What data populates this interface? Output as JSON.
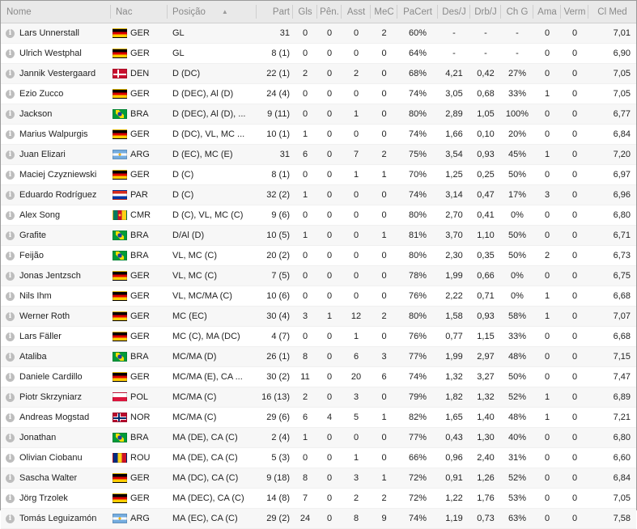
{
  "headers": {
    "name": "Nome",
    "nat": "Nac",
    "pos": "Posição",
    "apps": "Part",
    "gls": "Gls",
    "pens": "Pên.",
    "ast": "Asst",
    "mec": "MeC",
    "pacert": "PaCert",
    "desj": "Des/J",
    "drbj": "Drb/J",
    "chg": "Ch G",
    "ama": "Ama",
    "verm": "Verm",
    "clmed": "Cl Med"
  },
  "sort": {
    "column": "pos",
    "direction": "ascending",
    "icon": "sort-ascending-icon"
  },
  "info_icon": "i",
  "players": [
    {
      "name": "Lars Unnerstall",
      "nat": "GER",
      "pos": "GL",
      "apps": "31",
      "gls": "0",
      "pens": "0",
      "ast": "0",
      "mec": "2",
      "pacert": "60%",
      "desj": "-",
      "drbj": "-",
      "chg": "-",
      "ama": "0",
      "verm": "0",
      "clmed": "7,01"
    },
    {
      "name": "Ulrich Westphal",
      "nat": "GER",
      "pos": "GL",
      "apps": "8 (1)",
      "gls": "0",
      "pens": "0",
      "ast": "0",
      "mec": "0",
      "pacert": "64%",
      "desj": "-",
      "drbj": "-",
      "chg": "-",
      "ama": "0",
      "verm": "0",
      "clmed": "6,90"
    },
    {
      "name": "Jannik Vestergaard",
      "nat": "DEN",
      "pos": "D (DC)",
      "apps": "22 (1)",
      "gls": "2",
      "pens": "0",
      "ast": "2",
      "mec": "0",
      "pacert": "68%",
      "desj": "4,21",
      "drbj": "0,42",
      "chg": "27%",
      "ama": "0",
      "verm": "0",
      "clmed": "7,05"
    },
    {
      "name": "Ezio Zucco",
      "nat": "GER",
      "pos": "D (DEC), Al (D)",
      "apps": "24 (4)",
      "gls": "0",
      "pens": "0",
      "ast": "0",
      "mec": "0",
      "pacert": "74%",
      "desj": "3,05",
      "drbj": "0,68",
      "chg": "33%",
      "ama": "1",
      "verm": "0",
      "clmed": "7,05"
    },
    {
      "name": "Jackson",
      "nat": "BRA",
      "pos": "D (DEC), Al (D), ...",
      "apps": "9 (11)",
      "gls": "0",
      "pens": "0",
      "ast": "1",
      "mec": "0",
      "pacert": "80%",
      "desj": "2,89",
      "drbj": "1,05",
      "chg": "100%",
      "ama": "0",
      "verm": "0",
      "clmed": "6,77"
    },
    {
      "name": "Marius Walpurgis",
      "nat": "GER",
      "pos": "D (DC), VL, MC ...",
      "apps": "10 (1)",
      "gls": "1",
      "pens": "0",
      "ast": "0",
      "mec": "0",
      "pacert": "74%",
      "desj": "1,66",
      "drbj": "0,10",
      "chg": "20%",
      "ama": "0",
      "verm": "0",
      "clmed": "6,84"
    },
    {
      "name": "Juan Elizari",
      "nat": "ARG",
      "pos": "D (EC), MC (E)",
      "apps": "31",
      "gls": "6",
      "pens": "0",
      "ast": "7",
      "mec": "2",
      "pacert": "75%",
      "desj": "3,54",
      "drbj": "0,93",
      "chg": "45%",
      "ama": "1",
      "verm": "0",
      "clmed": "7,20"
    },
    {
      "name": "Maciej Czyzniewski",
      "nat": "GER",
      "pos": "D (C)",
      "apps": "8 (1)",
      "gls": "0",
      "pens": "0",
      "ast": "1",
      "mec": "1",
      "pacert": "70%",
      "desj": "1,25",
      "drbj": "0,25",
      "chg": "50%",
      "ama": "0",
      "verm": "0",
      "clmed": "6,97"
    },
    {
      "name": "Eduardo Rodríguez",
      "nat": "PAR",
      "pos": "D (C)",
      "apps": "32 (2)",
      "gls": "1",
      "pens": "0",
      "ast": "0",
      "mec": "0",
      "pacert": "74%",
      "desj": "3,14",
      "drbj": "0,47",
      "chg": "17%",
      "ama": "3",
      "verm": "0",
      "clmed": "6,96"
    },
    {
      "name": "Alex Song",
      "nat": "CMR",
      "pos": "D (C), VL, MC (C)",
      "apps": "9 (6)",
      "gls": "0",
      "pens": "0",
      "ast": "0",
      "mec": "0",
      "pacert": "80%",
      "desj": "2,70",
      "drbj": "0,41",
      "chg": "0%",
      "ama": "0",
      "verm": "0",
      "clmed": "6,80"
    },
    {
      "name": "Grafite",
      "nat": "BRA",
      "pos": "D/Al (D)",
      "apps": "10 (5)",
      "gls": "1",
      "pens": "0",
      "ast": "0",
      "mec": "1",
      "pacert": "81%",
      "desj": "3,70",
      "drbj": "1,10",
      "chg": "50%",
      "ama": "0",
      "verm": "0",
      "clmed": "6,71"
    },
    {
      "name": "Feijão",
      "nat": "BRA",
      "pos": "VL, MC (C)",
      "apps": "20 (2)",
      "gls": "0",
      "pens": "0",
      "ast": "0",
      "mec": "0",
      "pacert": "80%",
      "desj": "2,30",
      "drbj": "0,35",
      "chg": "50%",
      "ama": "2",
      "verm": "0",
      "clmed": "6,73"
    },
    {
      "name": "Jonas Jentzsch",
      "nat": "GER",
      "pos": "VL, MC (C)",
      "apps": "7 (5)",
      "gls": "0",
      "pens": "0",
      "ast": "0",
      "mec": "0",
      "pacert": "78%",
      "desj": "1,99",
      "drbj": "0,66",
      "chg": "0%",
      "ama": "0",
      "verm": "0",
      "clmed": "6,75"
    },
    {
      "name": "Nils Ihm",
      "nat": "GER",
      "pos": "VL, MC/MA (C)",
      "apps": "10 (6)",
      "gls": "0",
      "pens": "0",
      "ast": "0",
      "mec": "0",
      "pacert": "76%",
      "desj": "2,22",
      "drbj": "0,71",
      "chg": "0%",
      "ama": "1",
      "verm": "0",
      "clmed": "6,68"
    },
    {
      "name": "Werner Roth",
      "nat": "GER",
      "pos": "MC (EC)",
      "apps": "30 (4)",
      "gls": "3",
      "pens": "1",
      "ast": "12",
      "mec": "2",
      "pacert": "80%",
      "desj": "1,58",
      "drbj": "0,93",
      "chg": "58%",
      "ama": "1",
      "verm": "0",
      "clmed": "7,07"
    },
    {
      "name": "Lars Fäller",
      "nat": "GER",
      "pos": "MC (C), MA (DC)",
      "apps": "4 (7)",
      "gls": "0",
      "pens": "0",
      "ast": "1",
      "mec": "0",
      "pacert": "76%",
      "desj": "0,77",
      "drbj": "1,15",
      "chg": "33%",
      "ama": "0",
      "verm": "0",
      "clmed": "6,68"
    },
    {
      "name": "Ataliba",
      "nat": "BRA",
      "pos": "MC/MA (D)",
      "apps": "26 (1)",
      "gls": "8",
      "pens": "0",
      "ast": "6",
      "mec": "3",
      "pacert": "77%",
      "desj": "1,99",
      "drbj": "2,97",
      "chg": "48%",
      "ama": "0",
      "verm": "0",
      "clmed": "7,15"
    },
    {
      "name": "Daniele Cardillo",
      "nat": "GER",
      "pos": "MC/MA (E), CA ...",
      "apps": "30 (2)",
      "gls": "11",
      "pens": "0",
      "ast": "20",
      "mec": "6",
      "pacert": "74%",
      "desj": "1,32",
      "drbj": "3,27",
      "chg": "50%",
      "ama": "0",
      "verm": "0",
      "clmed": "7,47"
    },
    {
      "name": "Piotr Skrzyniarz",
      "nat": "POL",
      "pos": "MC/MA (C)",
      "apps": "16 (13)",
      "gls": "2",
      "pens": "0",
      "ast": "3",
      "mec": "0",
      "pacert": "79%",
      "desj": "1,82",
      "drbj": "1,32",
      "chg": "52%",
      "ama": "1",
      "verm": "0",
      "clmed": "6,89"
    },
    {
      "name": "Andreas Mogstad",
      "nat": "NOR",
      "pos": "MC/MA (C)",
      "apps": "29 (6)",
      "gls": "6",
      "pens": "4",
      "ast": "5",
      "mec": "1",
      "pacert": "82%",
      "desj": "1,65",
      "drbj": "1,40",
      "chg": "48%",
      "ama": "1",
      "verm": "0",
      "clmed": "7,21"
    },
    {
      "name": "Jonathan",
      "nat": "BRA",
      "pos": "MA (DE), CA (C)",
      "apps": "2 (4)",
      "gls": "1",
      "pens": "0",
      "ast": "0",
      "mec": "0",
      "pacert": "77%",
      "desj": "0,43",
      "drbj": "1,30",
      "chg": "40%",
      "ama": "0",
      "verm": "0",
      "clmed": "6,80"
    },
    {
      "name": "Olivian Ciobanu",
      "nat": "ROU",
      "pos": "MA (DE), CA (C)",
      "apps": "5 (3)",
      "gls": "0",
      "pens": "0",
      "ast": "1",
      "mec": "0",
      "pacert": "66%",
      "desj": "0,96",
      "drbj": "2,40",
      "chg": "31%",
      "ama": "0",
      "verm": "0",
      "clmed": "6,60"
    },
    {
      "name": "Sascha Walter",
      "nat": "GER",
      "pos": "MA (DC), CA (C)",
      "apps": "9 (18)",
      "gls": "8",
      "pens": "0",
      "ast": "3",
      "mec": "1",
      "pacert": "72%",
      "desj": "0,91",
      "drbj": "1,26",
      "chg": "52%",
      "ama": "0",
      "verm": "0",
      "clmed": "6,84"
    },
    {
      "name": "Jörg Trzolek",
      "nat": "GER",
      "pos": "MA (DEC), CA (C)",
      "apps": "14 (8)",
      "gls": "7",
      "pens": "0",
      "ast": "2",
      "mec": "2",
      "pacert": "72%",
      "desj": "1,22",
      "drbj": "1,76",
      "chg": "53%",
      "ama": "0",
      "verm": "0",
      "clmed": "7,05"
    },
    {
      "name": "Tomás Leguizamón",
      "nat": "ARG",
      "pos": "MA (EC), CA (C)",
      "apps": "29 (2)",
      "gls": "24",
      "pens": "0",
      "ast": "8",
      "mec": "9",
      "pacert": "74%",
      "desj": "1,19",
      "drbj": "0,73",
      "chg": "63%",
      "ama": "0",
      "verm": "0",
      "clmed": "7,58"
    }
  ]
}
